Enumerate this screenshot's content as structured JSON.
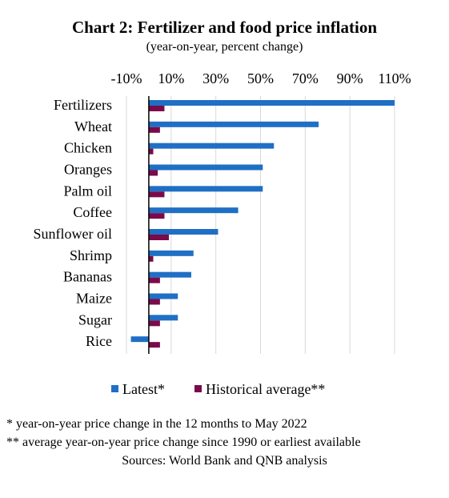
{
  "chart_data": {
    "type": "bar",
    "orientation": "horizontal",
    "title": "Chart 2: Fertilizer and food price inflation",
    "subtitle": "(year-on-year, percent change)",
    "x_ticks": [
      "-10%",
      "10%",
      "30%",
      "50%",
      "70%",
      "90%",
      "110%"
    ],
    "x_tick_values": [
      -10,
      10,
      30,
      50,
      70,
      90,
      110
    ],
    "xlim": [
      -10,
      110
    ],
    "categories": [
      "Fertilizers",
      "Wheat",
      "Chicken",
      "Oranges",
      "Palm oil",
      "Coffee",
      "Sunflower oil",
      "Shrimp",
      "Bananas",
      "Maize",
      "Sugar",
      "Rice"
    ],
    "series": [
      {
        "name": "Latest*",
        "color": "#1f6fc5",
        "values": [
          110,
          76,
          56,
          51,
          51,
          40,
          31,
          20,
          19,
          13,
          13,
          -8
        ]
      },
      {
        "name": "Historical average**",
        "color": "#7b0a4a",
        "values": [
          7,
          5,
          2,
          4,
          7,
          7,
          9,
          2,
          5,
          5,
          5,
          5
        ]
      }
    ],
    "legend_position": "bottom",
    "grid": "vertical"
  },
  "footnotes": [
    "* year-on-year price change in the 12 months to May 2022",
    "** average year-on-year price change since 1990 or earliest available",
    "Sources: World Bank and QNB analysis"
  ]
}
